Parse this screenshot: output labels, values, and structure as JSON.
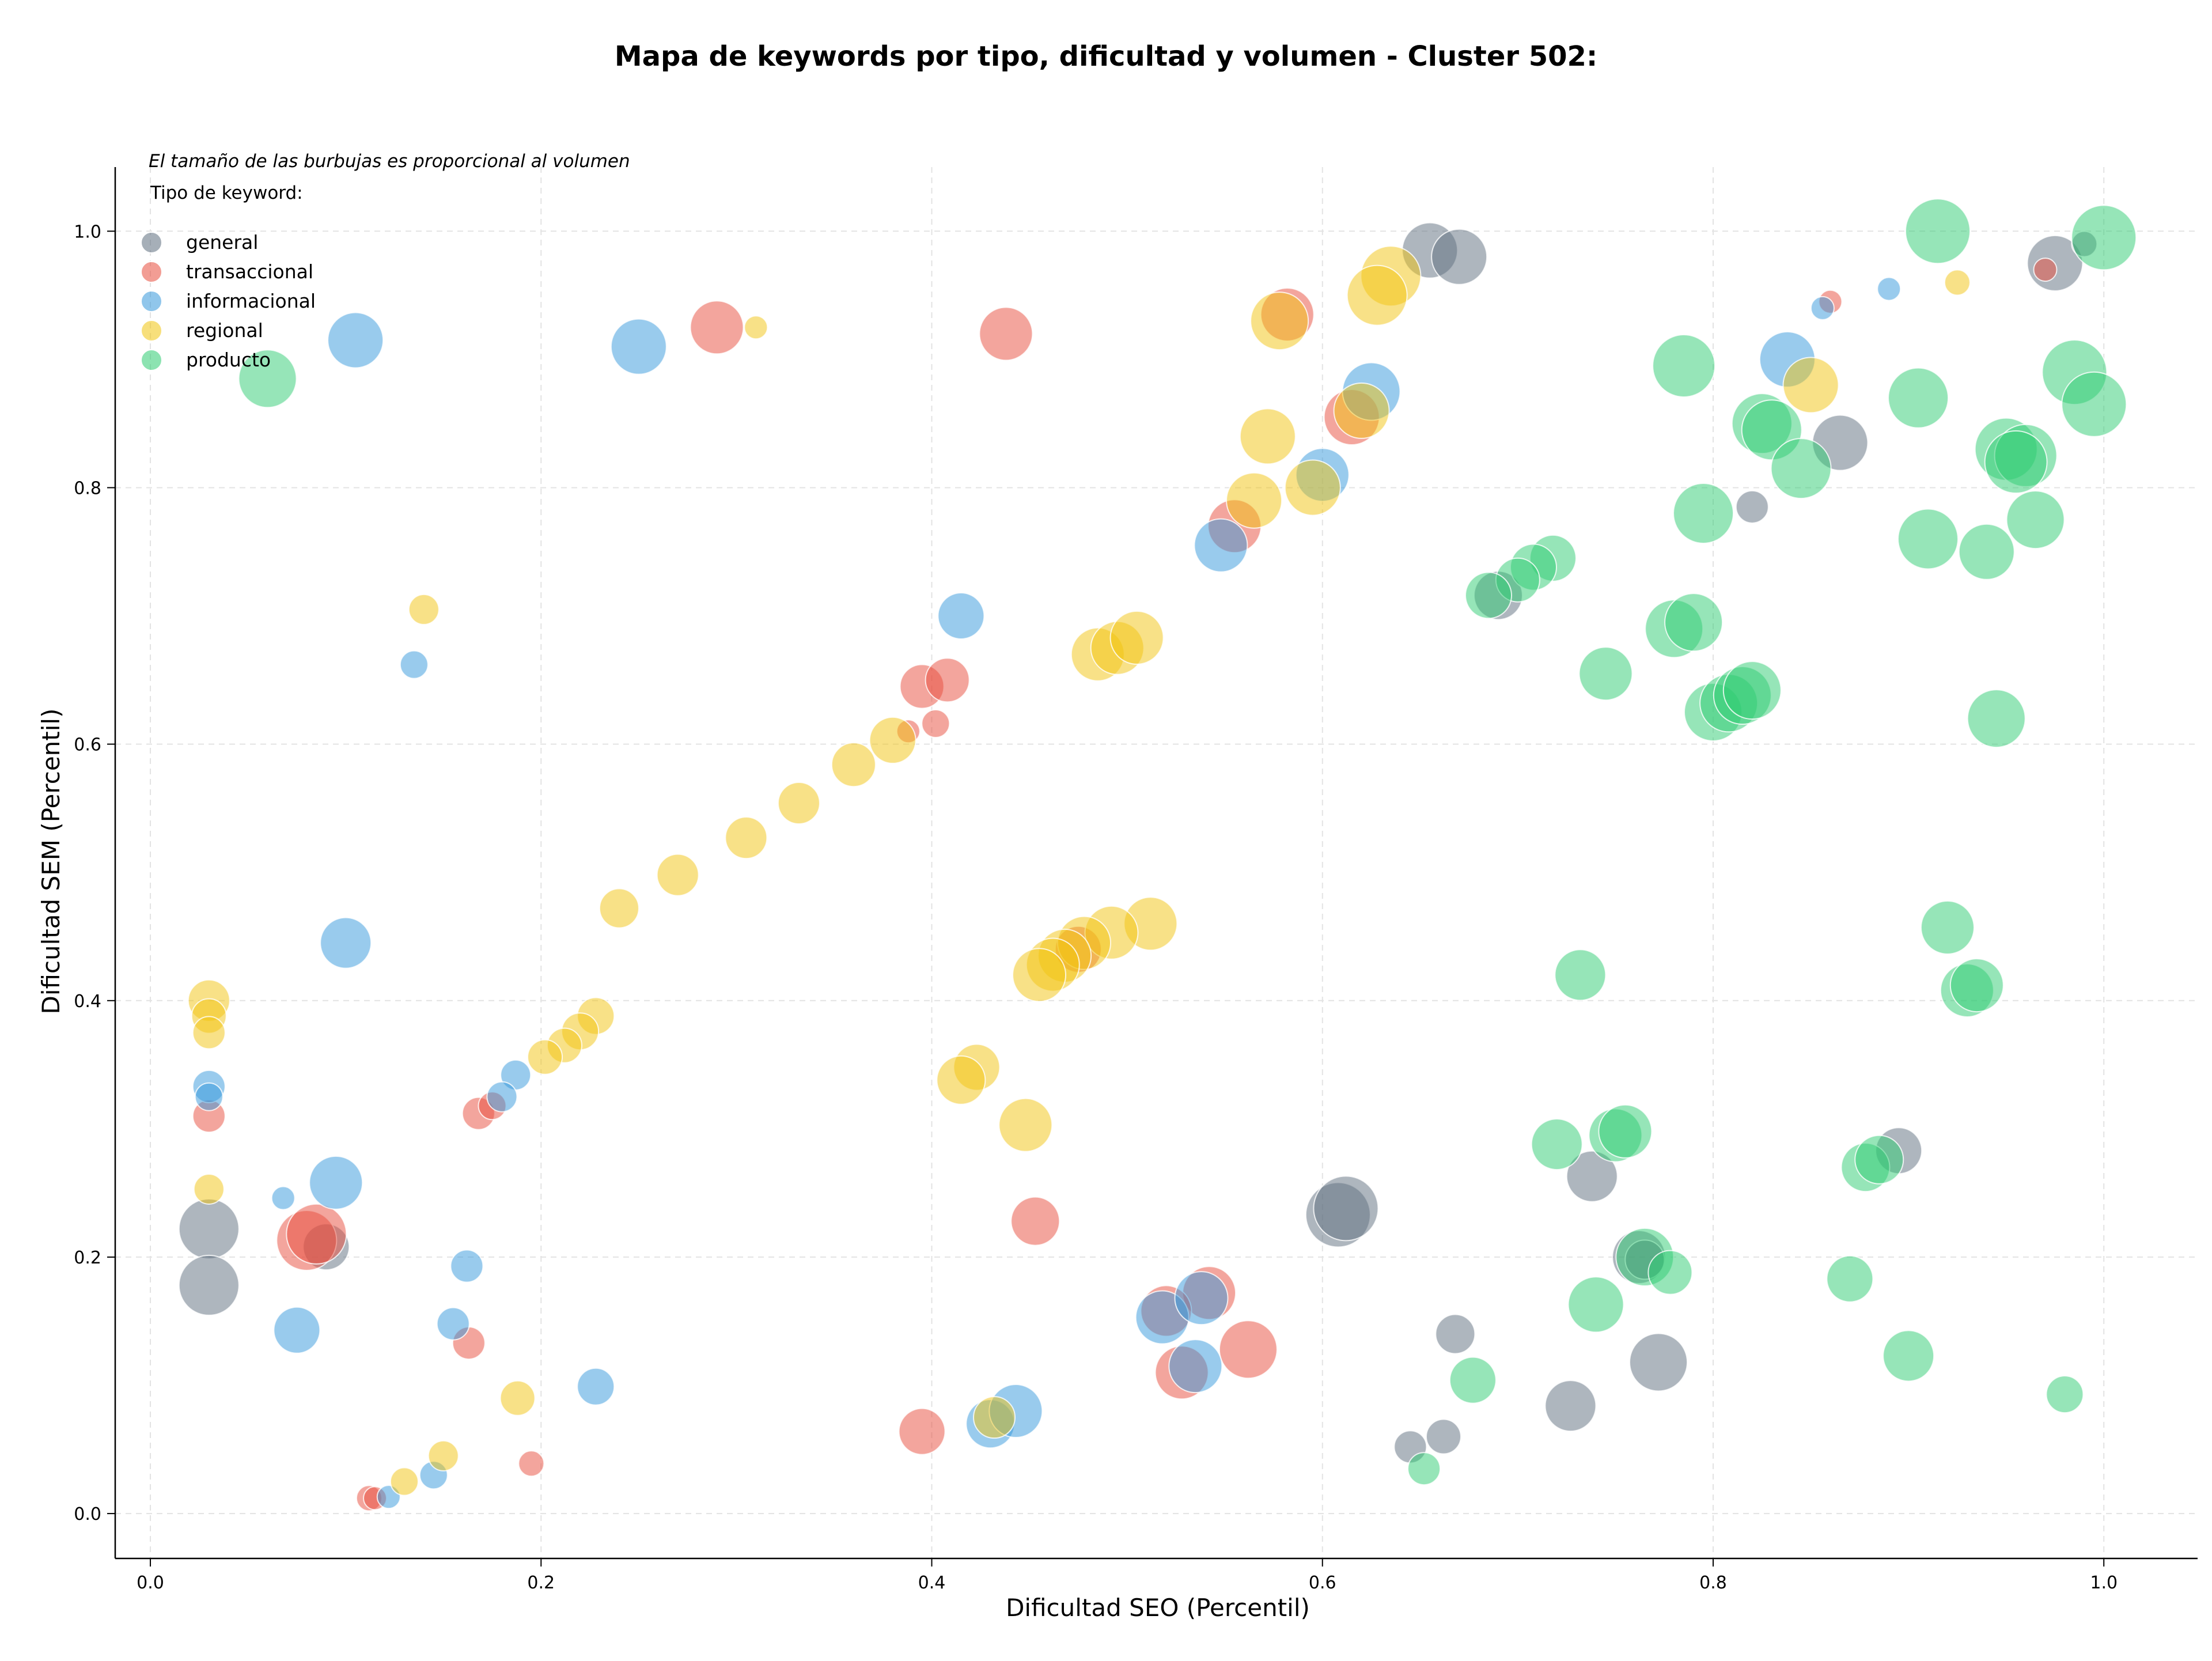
{
  "chart_data": {
    "type": "scatter",
    "title": "Mapa de keywords por tipo, dificultad y volumen - Cluster 502:",
    "subtitle": "El tamaño de las burbujas es proporcional al volumen",
    "xlabel": "Dificultad SEO (Percentil)",
    "ylabel": "Dificultad SEM (Percentil)",
    "xlim": [
      -0.018,
      1.048
    ],
    "ylim": [
      -0.035,
      1.05
    ],
    "x_ticks": [
      "0.0",
      "0.2",
      "0.4",
      "0.6",
      "0.8",
      "1.0"
    ],
    "y_ticks": [
      "0.0",
      "0.2",
      "0.4",
      "0.6",
      "0.8",
      "1.0"
    ],
    "grid": true,
    "legend": {
      "title": "Tipo de keyword:",
      "position": "top-left"
    },
    "size_note": "bubble size proportional to volume (relative radius)",
    "series": [
      {
        "name": "general",
        "color": "#5d6d7e",
        "points": [
          [
            0.655,
            0.985,
            48
          ],
          [
            0.67,
            0.98,
            48
          ],
          [
            0.975,
            0.975,
            48
          ],
          [
            0.99,
            0.99,
            22
          ],
          [
            0.865,
            0.835,
            48
          ],
          [
            0.82,
            0.785,
            28
          ],
          [
            0.03,
            0.222,
            52
          ],
          [
            0.03,
            0.178,
            52
          ],
          [
            0.09,
            0.208,
            40
          ],
          [
            0.608,
            0.233,
            56
          ],
          [
            0.612,
            0.238,
            56
          ],
          [
            0.895,
            0.283,
            40
          ],
          [
            0.738,
            0.263,
            44
          ],
          [
            0.762,
            0.2,
            46
          ],
          [
            0.772,
            0.118,
            50
          ],
          [
            0.727,
            0.084,
            44
          ],
          [
            0.668,
            0.14,
            34
          ],
          [
            0.662,
            0.06,
            30
          ],
          [
            0.645,
            0.052,
            28
          ],
          [
            0.69,
            0.716,
            42
          ],
          [
            0.765,
            0.198,
            34
          ]
        ]
      },
      {
        "name": "transaccional",
        "color": "#e74c3c",
        "points": [
          [
            0.29,
            0.925,
            46
          ],
          [
            0.438,
            0.92,
            46
          ],
          [
            0.582,
            0.935,
            46
          ],
          [
            0.97,
            0.97,
            20
          ],
          [
            0.86,
            0.945,
            20
          ],
          [
            0.615,
            0.855,
            48
          ],
          [
            0.555,
            0.77,
            46
          ],
          [
            0.395,
            0.645,
            38
          ],
          [
            0.408,
            0.65,
            38
          ],
          [
            0.402,
            0.616,
            24
          ],
          [
            0.388,
            0.61,
            20
          ],
          [
            0.03,
            0.31,
            28
          ],
          [
            0.168,
            0.312,
            28
          ],
          [
            0.175,
            0.318,
            24
          ],
          [
            0.08,
            0.213,
            52
          ],
          [
            0.085,
            0.218,
            52
          ],
          [
            0.163,
            0.133,
            28
          ],
          [
            0.195,
            0.039,
            22
          ],
          [
            0.112,
            0.012,
            22
          ],
          [
            0.115,
            0.012,
            20
          ],
          [
            0.453,
            0.228,
            42
          ],
          [
            0.475,
            0.44,
            40
          ],
          [
            0.395,
            0.064,
            40
          ],
          [
            0.528,
            0.11,
            46
          ],
          [
            0.562,
            0.128,
            50
          ],
          [
            0.542,
            0.172,
            46
          ],
          [
            0.52,
            0.158,
            44
          ]
        ]
      },
      {
        "name": "informacional",
        "color": "#3498db",
        "points": [
          [
            0.105,
            0.915,
            48
          ],
          [
            0.25,
            0.91,
            48
          ],
          [
            0.625,
            0.875,
            50
          ],
          [
            0.6,
            0.81,
            46
          ],
          [
            0.548,
            0.755,
            46
          ],
          [
            0.415,
            0.7,
            40
          ],
          [
            0.135,
            0.662,
            24
          ],
          [
            0.838,
            0.9,
            48
          ],
          [
            0.856,
            0.94,
            20
          ],
          [
            0.89,
            0.955,
            20
          ],
          [
            0.1,
            0.445,
            44
          ],
          [
            0.03,
            0.333,
            28
          ],
          [
            0.03,
            0.325,
            24
          ],
          [
            0.187,
            0.342,
            26
          ],
          [
            0.18,
            0.325,
            26
          ],
          [
            0.068,
            0.246,
            20
          ],
          [
            0.095,
            0.258,
            46
          ],
          [
            0.162,
            0.193,
            28
          ],
          [
            0.075,
            0.143,
            40
          ],
          [
            0.155,
            0.148,
            28
          ],
          [
            0.228,
            0.099,
            32
          ],
          [
            0.145,
            0.03,
            24
          ],
          [
            0.122,
            0.013,
            20
          ],
          [
            0.43,
            0.07,
            42
          ],
          [
            0.443,
            0.08,
            46
          ],
          [
            0.535,
            0.115,
            46
          ],
          [
            0.518,
            0.153,
            46
          ],
          [
            0.538,
            0.168,
            46
          ]
        ]
      },
      {
        "name": "regional",
        "color": "#f1c40f",
        "points": [
          [
            0.635,
            0.965,
            52
          ],
          [
            0.628,
            0.95,
            52
          ],
          [
            0.578,
            0.93,
            50
          ],
          [
            0.85,
            0.88,
            48
          ],
          [
            0.62,
            0.86,
            48
          ],
          [
            0.572,
            0.84,
            48
          ],
          [
            0.565,
            0.79,
            48
          ],
          [
            0.595,
            0.8,
            48
          ],
          [
            0.485,
            0.67,
            46
          ],
          [
            0.495,
            0.675,
            46
          ],
          [
            0.505,
            0.683,
            46
          ],
          [
            0.38,
            0.603,
            40
          ],
          [
            0.36,
            0.584,
            38
          ],
          [
            0.332,
            0.554,
            36
          ],
          [
            0.305,
            0.527,
            36
          ],
          [
            0.27,
            0.498,
            36
          ],
          [
            0.24,
            0.472,
            34
          ],
          [
            0.512,
            0.46,
            46
          ],
          [
            0.492,
            0.453,
            46
          ],
          [
            0.478,
            0.445,
            46
          ],
          [
            0.468,
            0.435,
            46
          ],
          [
            0.462,
            0.428,
            46
          ],
          [
            0.455,
            0.42,
            46
          ],
          [
            0.423,
            0.348,
            40
          ],
          [
            0.415,
            0.338,
            42
          ],
          [
            0.448,
            0.303,
            46
          ],
          [
            0.228,
            0.388,
            32
          ],
          [
            0.22,
            0.376,
            32
          ],
          [
            0.212,
            0.365,
            30
          ],
          [
            0.202,
            0.356,
            30
          ],
          [
            0.03,
            0.4,
            36
          ],
          [
            0.03,
            0.388,
            30
          ],
          [
            0.03,
            0.375,
            28
          ],
          [
            0.03,
            0.253,
            26
          ],
          [
            0.14,
            0.705,
            26
          ],
          [
            0.925,
            0.96,
            22
          ],
          [
            0.188,
            0.09,
            30
          ],
          [
            0.15,
            0.045,
            26
          ],
          [
            0.13,
            0.025,
            24
          ],
          [
            0.432,
            0.075,
            36
          ],
          [
            0.31,
            0.925,
            20
          ]
        ]
      },
      {
        "name": "producto",
        "color": "#2ecc71",
        "points": [
          [
            0.06,
            0.885,
            50
          ],
          [
            0.915,
            1.0,
            56
          ],
          [
            1.0,
            0.995,
            56
          ],
          [
            0.985,
            0.89,
            56
          ],
          [
            0.995,
            0.865,
            56
          ],
          [
            0.785,
            0.895,
            54
          ],
          [
            0.905,
            0.87,
            52
          ],
          [
            0.825,
            0.85,
            52
          ],
          [
            0.83,
            0.845,
            52
          ],
          [
            0.845,
            0.815,
            52
          ],
          [
            0.95,
            0.83,
            54
          ],
          [
            0.96,
            0.825,
            54
          ],
          [
            0.955,
            0.82,
            54
          ],
          [
            0.795,
            0.78,
            52
          ],
          [
            0.91,
            0.76,
            52
          ],
          [
            0.94,
            0.75,
            48
          ],
          [
            0.965,
            0.775,
            50
          ],
          [
            0.718,
            0.745,
            40
          ],
          [
            0.708,
            0.738,
            40
          ],
          [
            0.7,
            0.728,
            38
          ],
          [
            0.685,
            0.716,
            40
          ],
          [
            0.78,
            0.69,
            50
          ],
          [
            0.79,
            0.695,
            50
          ],
          [
            0.745,
            0.655,
            46
          ],
          [
            0.8,
            0.625,
            50
          ],
          [
            0.808,
            0.632,
            50
          ],
          [
            0.815,
            0.638,
            50
          ],
          [
            0.82,
            0.642,
            50
          ],
          [
            0.945,
            0.62,
            50
          ],
          [
            0.92,
            0.457,
            46
          ],
          [
            0.93,
            0.408,
            46
          ],
          [
            0.935,
            0.412,
            46
          ],
          [
            0.732,
            0.42,
            44
          ],
          [
            0.72,
            0.288,
            44
          ],
          [
            0.75,
            0.295,
            46
          ],
          [
            0.755,
            0.298,
            46
          ],
          [
            0.878,
            0.27,
            42
          ],
          [
            0.885,
            0.276,
            42
          ],
          [
            0.765,
            0.2,
            50
          ],
          [
            0.778,
            0.188,
            38
          ],
          [
            0.74,
            0.163,
            48
          ],
          [
            0.87,
            0.183,
            40
          ],
          [
            0.9,
            0.123,
            44
          ],
          [
            0.98,
            0.093,
            32
          ],
          [
            0.677,
            0.104,
            40
          ],
          [
            0.652,
            0.035,
            28
          ]
        ]
      }
    ]
  }
}
